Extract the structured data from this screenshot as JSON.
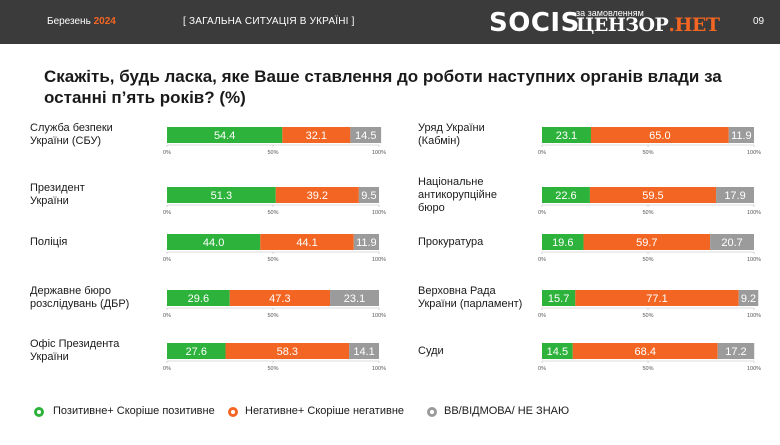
{
  "header": {
    "date_label": "Березень",
    "year": "2024",
    "section": "[ ЗАГАЛЬНА СИТУАЦІЯ В УКРАЇНІ ]",
    "logo": "SOCIS",
    "order_label": "за замовленням",
    "brand_main": "ЦЕНЗОР",
    "brand_net": ".НЕТ",
    "page_number": "09"
  },
  "colors": {
    "positive": "#2db23b",
    "negative": "#f26522",
    "unknown": "#9b9b9b",
    "header_bg": "#3b3b3b"
  },
  "chart_data": {
    "type": "bar",
    "stacked": true,
    "orientation": "horizontal",
    "title": "Скажіть, будь ласка, яке Ваше ставлення до роботи наступних органів влади за останні п’ять років? (%)",
    "categories": [
      "Служба безпеки України (СБУ)",
      "Президент України",
      "Поліція",
      "Державне бюро розслідувань (ДБР)",
      "Офіс Президента України",
      "Уряд України (Кабмін)",
      "Національне антикорупційне бюро",
      "Прокуратура",
      "Верховна Рада України (парламент)",
      "Суди"
    ],
    "series": [
      {
        "name": "Позитивне+ Скоріше позитивне",
        "values": [
          54.4,
          51.3,
          44.0,
          29.6,
          27.6,
          23.1,
          22.6,
          19.6,
          15.7,
          14.5
        ]
      },
      {
        "name": "Негативне+ Скоріше негативне",
        "values": [
          32.1,
          39.2,
          44.1,
          47.3,
          58.3,
          65.0,
          59.5,
          59.7,
          77.1,
          68.4
        ]
      },
      {
        "name": "ВВ/ВІДМОВА/ НЕ ЗНАЮ",
        "values": [
          14.5,
          9.5,
          11.9,
          23.1,
          14.1,
          11.9,
          17.9,
          20.7,
          9.2,
          17.2
        ]
      }
    ],
    "value_labels": [
      [
        "54.4",
        "32.1",
        "14.5"
      ],
      [
        "51.3",
        "39.2",
        "9.5"
      ],
      [
        "44.0",
        "44.1",
        "11.9"
      ],
      [
        "29.6",
        "47.3",
        "23.1"
      ],
      [
        "27.6",
        "58.3",
        "14.1"
      ],
      [
        "23.1",
        "65.0",
        "11.9"
      ],
      [
        "22.6",
        "59.5",
        "17.9"
      ],
      [
        "19.6",
        "59.7",
        "20.7"
      ],
      [
        "15.7",
        "77.1",
        "9.2"
      ],
      [
        "14.5",
        "68.4",
        "17.2"
      ]
    ],
    "xlim": [
      0,
      100
    ],
    "tick_labels": [
      "0%",
      "50%",
      "100%"
    ],
    "legend_position": "bottom"
  },
  "labels": [
    [
      "Служба безпеки",
      "України (СБУ)"
    ],
    [
      "Президент",
      "України"
    ],
    [
      "Поліція"
    ],
    [
      "Державне бюро",
      "розслідувань (ДБР)"
    ],
    [
      "Офіс Президента",
      "України"
    ],
    [
      "Уряд України",
      "(Кабмін)"
    ],
    [
      "Національне",
      "антикорупційне",
      "бюро"
    ],
    [
      "Прокуратура"
    ],
    [
      "Верховна Рада",
      "України (парламент)"
    ],
    [
      "Суди"
    ]
  ]
}
